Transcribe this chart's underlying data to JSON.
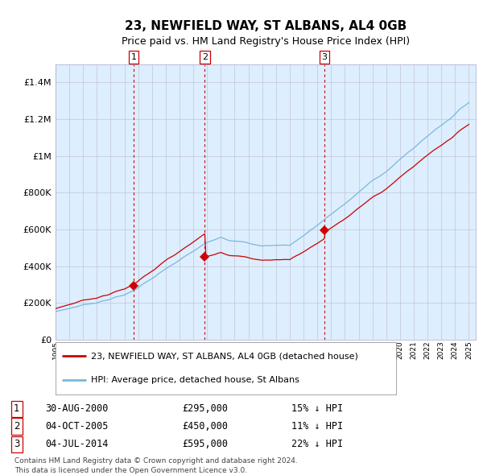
{
  "title": "23, NEWFIELD WAY, ST ALBANS, AL4 0GB",
  "subtitle": "Price paid vs. HM Land Registry's House Price Index (HPI)",
  "plot_bg_color": "#ddeeff",
  "hpi_color": "#7ab8d9",
  "price_color": "#cc0000",
  "marker_color": "#cc0000",
  "vline_color": "#cc0000",
  "grid_color": "#bbbbcc",
  "yticks": [
    0,
    200000,
    400000,
    600000,
    800000,
    1000000,
    1200000,
    1400000
  ],
  "ytick_labels": [
    "£0",
    "£200K",
    "£400K",
    "£600K",
    "£800K",
    "£1M",
    "£1.2M",
    "£1.4M"
  ],
  "sale_year_offsets": [
    5.665,
    10.836,
    19.505
  ],
  "sale_prices": [
    295000,
    450000,
    595000
  ],
  "sale_labels": [
    "1",
    "2",
    "3"
  ],
  "legend_price_label": "23, NEWFIELD WAY, ST ALBANS, AL4 0GB (detached house)",
  "legend_hpi_label": "HPI: Average price, detached house, St Albans",
  "table_rows": [
    {
      "num": "1",
      "date": "30-AUG-2000",
      "price": "£295,000",
      "pct": "15%",
      "dir": "↓",
      "ref": "HPI"
    },
    {
      "num": "2",
      "date": "04-OCT-2005",
      "price": "£450,000",
      "pct": "11%",
      "dir": "↓",
      "ref": "HPI"
    },
    {
      "num": "3",
      "date": "04-JUL-2014",
      "price": "£595,000",
      "pct": "22%",
      "dir": "↓",
      "ref": "HPI"
    }
  ],
  "footer": "Contains HM Land Registry data © Crown copyright and database right 2024.\nThis data is licensed under the Open Government Licence v3.0."
}
